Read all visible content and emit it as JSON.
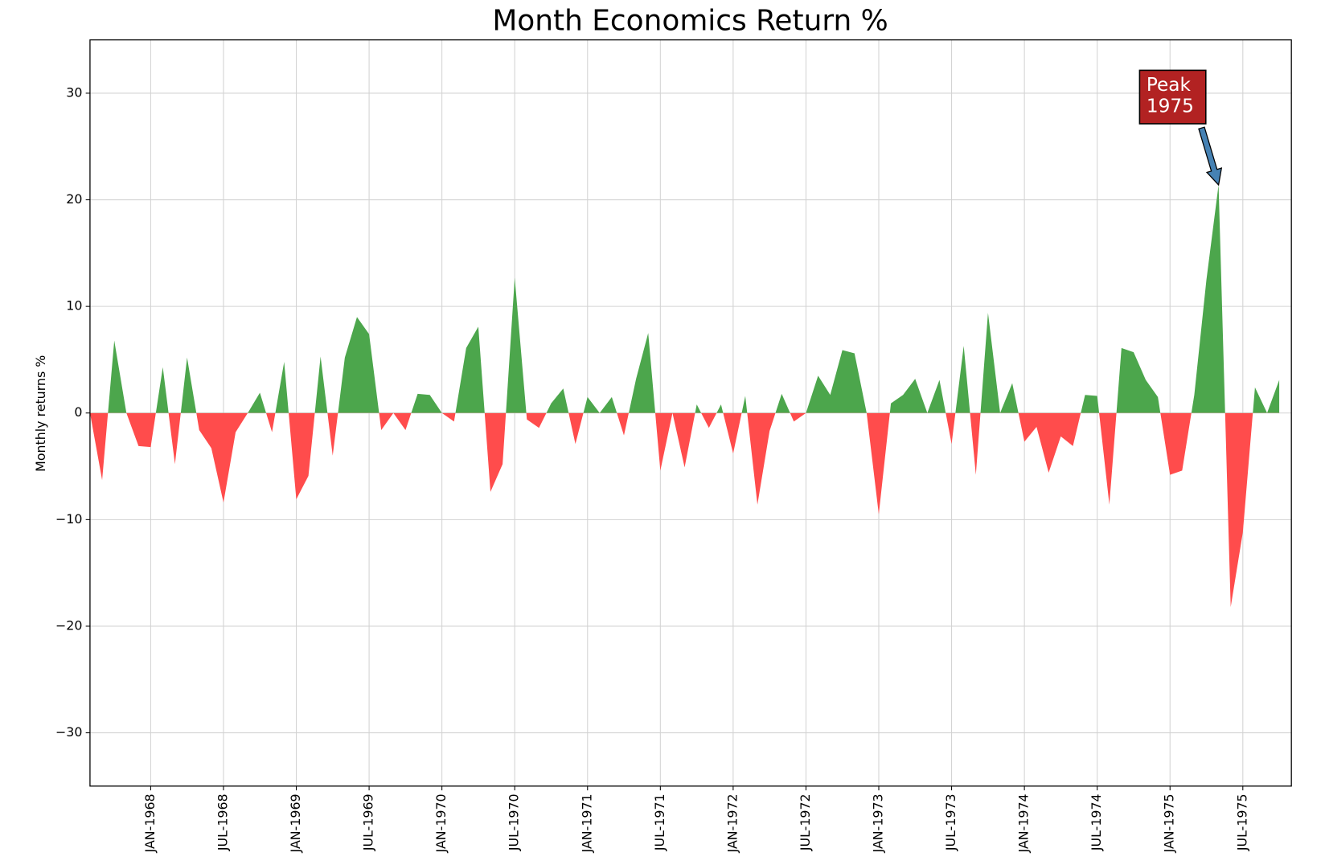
{
  "chart_data": {
    "type": "area",
    "title": "Month Economics Return %",
    "ylabel": "Monthly returns %",
    "x": [
      "1967-08",
      "1967-09",
      "1967-10",
      "1967-11",
      "1967-12",
      "1968-01",
      "1968-02",
      "1968-03",
      "1968-04",
      "1968-05",
      "1968-06",
      "1968-07",
      "1968-08",
      "1968-09",
      "1968-10",
      "1968-11",
      "1968-12",
      "1969-01",
      "1969-02",
      "1969-03",
      "1969-04",
      "1969-05",
      "1969-06",
      "1969-07",
      "1969-08",
      "1969-09",
      "1969-10",
      "1969-11",
      "1969-12",
      "1970-01",
      "1970-02",
      "1970-03",
      "1970-04",
      "1970-05",
      "1970-06",
      "1970-07",
      "1970-08",
      "1970-09",
      "1970-10",
      "1970-11",
      "1970-12",
      "1971-01",
      "1971-02",
      "1971-03",
      "1971-04",
      "1971-05",
      "1971-06",
      "1971-07",
      "1971-08",
      "1971-09",
      "1971-10",
      "1971-11",
      "1971-12",
      "1972-01",
      "1972-02",
      "1972-03",
      "1972-04",
      "1972-05",
      "1972-06",
      "1972-07",
      "1972-08",
      "1972-09",
      "1972-10",
      "1972-11",
      "1972-12",
      "1973-01",
      "1973-02",
      "1973-03",
      "1973-04",
      "1973-05",
      "1973-06",
      "1973-07",
      "1973-08",
      "1973-09",
      "1973-10",
      "1973-11",
      "1973-12",
      "1974-01",
      "1974-02",
      "1974-03",
      "1974-04",
      "1974-05",
      "1974-06",
      "1974-07",
      "1974-08",
      "1974-09",
      "1974-10",
      "1974-11",
      "1974-12",
      "1975-01",
      "1975-02",
      "1975-03",
      "1975-04",
      "1975-05",
      "1975-06",
      "1975-07",
      "1975-08",
      "1975-09",
      "1975-10"
    ],
    "values": [
      0,
      -6.3,
      6.8,
      0,
      -3.1,
      -3.2,
      4.3,
      -4.8,
      5.2,
      -1.6,
      -3.3,
      -8.4,
      -1.8,
      0,
      1.9,
      -1.8,
      4.8,
      -8.1,
      -5.9,
      5.3,
      -4.0,
      5.2,
      9.0,
      7.4,
      -1.6,
      0,
      -1.6,
      1.8,
      1.7,
      0,
      -0.8,
      6.1,
      8.1,
      -7.4,
      -4.8,
      12.7,
      -0.6,
      -1.4,
      0.9,
      2.3,
      -2.9,
      1.5,
      0,
      1.5,
      -2.1,
      3.2,
      7.5,
      -5.4,
      0,
      -5.1,
      0.8,
      -1.4,
      0.8,
      -3.8,
      1.6,
      -8.6,
      -1.7,
      1.8,
      -0.8,
      0,
      3.5,
      1.7,
      5.9,
      5.6,
      0,
      -9.5,
      0.9,
      1.7,
      3.2,
      0,
      3.1,
      -2.9,
      6.3,
      -5.8,
      9.4,
      0,
      2.8,
      -2.7,
      -1.3,
      -5.6,
      -2.2,
      -3.1,
      1.7,
      1.6,
      -8.6,
      6.1,
      5.7,
      3.1,
      1.5,
      -5.8,
      -5.4,
      1.7,
      12.5,
      21.4,
      -18.2,
      -11.2,
      2.4,
      0,
      3.1
    ],
    "colors": {
      "positive": "#4ca64c",
      "negative": "#ff4c4c"
    },
    "xlim": [
      "1967-08",
      "1975-11"
    ],
    "xticks": [
      {
        "value": "1968-01",
        "label": "JAN-1968"
      },
      {
        "value": "1968-07",
        "label": "JUL-1968"
      },
      {
        "value": "1969-01",
        "label": "JAN-1969"
      },
      {
        "value": "1969-07",
        "label": "JUL-1969"
      },
      {
        "value": "1970-01",
        "label": "JAN-1970"
      },
      {
        "value": "1970-07",
        "label": "JUL-1970"
      },
      {
        "value": "1971-01",
        "label": "JAN-1971"
      },
      {
        "value": "1971-07",
        "label": "JUL-1971"
      },
      {
        "value": "1972-01",
        "label": "JAN-1972"
      },
      {
        "value": "1972-07",
        "label": "JUL-1972"
      },
      {
        "value": "1973-01",
        "label": "JAN-1973"
      },
      {
        "value": "1973-07",
        "label": "JUL-1973"
      },
      {
        "value": "1974-01",
        "label": "JAN-1974"
      },
      {
        "value": "1974-07",
        "label": "JUL-1974"
      },
      {
        "value": "1975-01",
        "label": "JAN-1975"
      },
      {
        "value": "1975-07",
        "label": "JUL-1975"
      }
    ],
    "ylim": [
      -35,
      35
    ],
    "yticks": [
      {
        "value": -30,
        "label": "−30"
      },
      {
        "value": -20,
        "label": "−20"
      },
      {
        "value": -10,
        "label": "−10"
      },
      0,
      10,
      20,
      30
    ],
    "grid": true,
    "annotation": [
      "Peak",
      "1975"
    ]
  }
}
